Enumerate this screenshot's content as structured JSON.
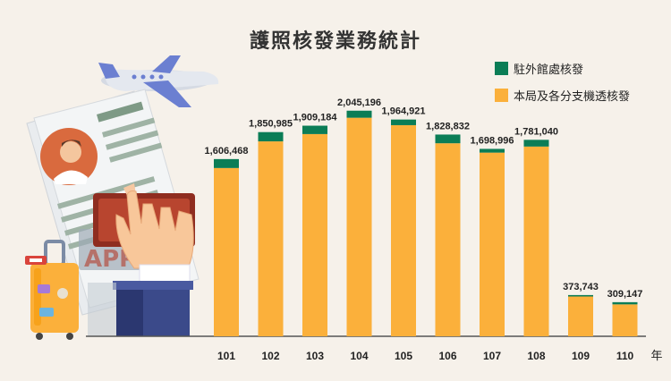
{
  "colors": {
    "background": "#f6f1ea",
    "green": "#0b7d56",
    "orange": "#fbb03b",
    "axis": "#555555"
  },
  "illustration": {
    "stamp_text": "APPR"
  },
  "chart_data": {
    "type": "bar",
    "stacked": true,
    "title": "護照核發業務統計",
    "legend_position": "top-right",
    "categories": [
      "101",
      "102",
      "103",
      "104",
      "105",
      "106",
      "107",
      "108",
      "109",
      "110"
    ],
    "x_unit": "年",
    "series": [
      {
        "name": "駐外館處核發",
        "color": "#0b7d56",
        "values": [
          81000,
          84000,
          76000,
          64000,
          51000,
          79000,
          34000,
          61000,
          13000,
          20000
        ]
      },
      {
        "name": "本局及各分支機透核發",
        "color": "#fbb03b",
        "values": [
          1525468,
          1766985,
          1833184,
          1981196,
          1913921,
          1749832,
          1664996,
          1720040,
          360743,
          289147
        ]
      }
    ],
    "totals": [
      1606468,
      1850985,
      1909184,
      2045196,
      1964921,
      1828832,
      1698996,
      1781040,
      373743,
      309147
    ],
    "total_labels": [
      "1,606,468",
      "1,850,985",
      "1,909,184",
      "2,045,196",
      "1,964,921",
      "1,828,832",
      "1,698,996",
      "1,781,040",
      "373,743",
      "309,147"
    ],
    "ylim": [
      0,
      2400000
    ],
    "grid": false
  }
}
